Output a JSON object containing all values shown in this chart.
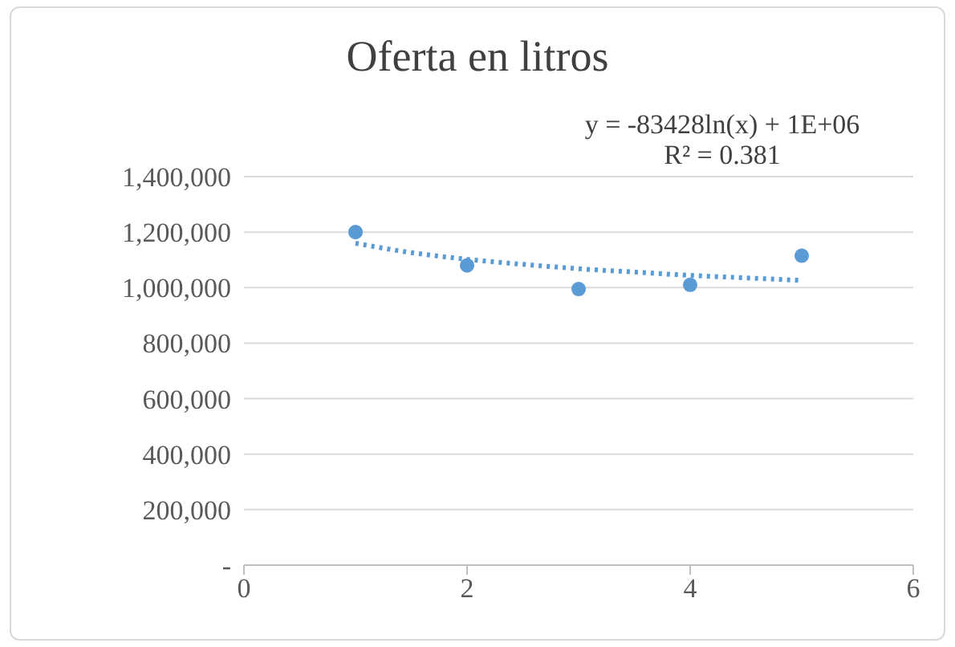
{
  "chart_data": {
    "type": "scatter",
    "title": "Oferta en litros",
    "annotations": [
      "y = -83428ln(x) + 1E+06",
      "R² = 0.381"
    ],
    "series": [
      {
        "type": "scatter",
        "color": "#5b9bd5",
        "x": [
          1,
          2,
          3,
          4,
          5
        ],
        "values": [
          1200000,
          1080000,
          995000,
          1010000,
          1115000
        ],
        "marker": "circle"
      },
      {
        "type": "line",
        "color": "#5b9bd5",
        "x": [
          1,
          1.5,
          2,
          2.5,
          3,
          3.5,
          4,
          4.5,
          5
        ],
        "values": [
          1160000,
          1126000,
          1102000,
          1084000,
          1068000,
          1056000,
          1044000,
          1035000,
          1026000
        ],
        "line_style": "dotted",
        "marker": "none"
      }
    ],
    "xlim": [
      0,
      6
    ],
    "xticks": [
      0,
      2,
      4,
      6
    ],
    "ylim": [
      0,
      1400000
    ],
    "yticks": [
      {
        "value": 0,
        "label": "-"
      },
      {
        "value": 200000,
        "label": "200,000"
      },
      {
        "value": 400000,
        "label": "400,000"
      },
      {
        "value": 600000,
        "label": "600,000"
      },
      {
        "value": 800000,
        "label": "800,000"
      },
      {
        "value": 1000000,
        "label": "1,000,000"
      },
      {
        "value": 1200000,
        "label": "1,200,000"
      },
      {
        "value": 1400000,
        "label": "1,400,000"
      }
    ],
    "grid": "y",
    "legend": false
  }
}
